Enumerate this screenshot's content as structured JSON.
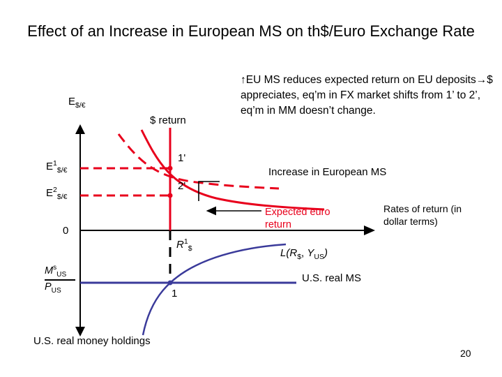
{
  "slide": {
    "title": "Effect of an Increase in European MS on th$/Euro Exchange Rate",
    "explanation": "↑EU MS reduces expected return on EU deposits→$ appreciates, eq’m in FX market shifts from 1’ to 2’, eq’m in MM doesn’t change.",
    "page_number": "20"
  },
  "diagram": {
    "labels": {
      "e_axis_main": "E",
      "e_axis_sub": "$/€",
      "dollar_return": "$ return",
      "e1_main": "E",
      "e1_sup": "1",
      "e1_sub": "$/€",
      "e2_main": "E",
      "e2_sup": "2",
      "e2_sub": "$/€",
      "origin": "0",
      "eq_1prime": "1'",
      "eq_2prime": "2'",
      "increase_note": "Increase in European MS",
      "expected_euro_return": "Expected euro return",
      "rates_of_return": "Rates of return (in dollar terms)",
      "r1_main": "R",
      "r1_sup": "1",
      "r1_sub": "$",
      "money_demand_L": "L(",
      "money_demand_R": "R",
      "money_demand_R_sub": "$",
      "money_demand_comma": ", ",
      "money_demand_Y": "Y",
      "money_demand_Y_sub": "US",
      "money_demand_close": ")",
      "ms_numerator_M": "M",
      "ms_numerator_sup": "s",
      "ms_numerator_sub": "US",
      "ms_denominator_P": "P",
      "ms_denominator_sub": "US",
      "us_real_ms": "U.S. real MS",
      "eq_1": "1",
      "us_real_money_holdings": "U.S. real money holdings"
    },
    "colors": {
      "axes": "#000000",
      "fx_market": "#e8001c",
      "money_market": "#3a3a9a",
      "dashed_guides": "#e8001c"
    }
  }
}
